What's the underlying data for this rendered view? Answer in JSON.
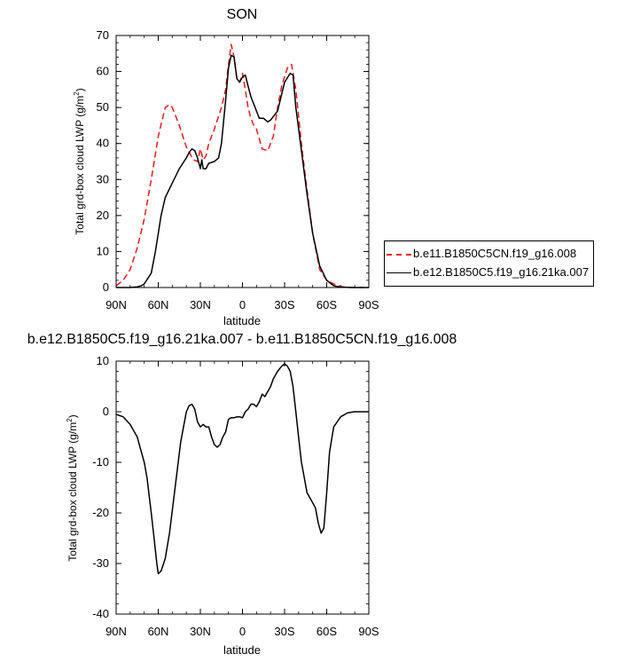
{
  "chart_data": [
    {
      "type": "line",
      "title": "SON",
      "xlabel": "latitude",
      "ylabel": "Total grd-box cloud LWP (g/m",
      "ylabel_sup": "2",
      "ylabel_end": ")",
      "xlim": [
        90,
        -90
      ],
      "ylim": [
        0,
        70
      ],
      "xticks": [
        90,
        60,
        30,
        0,
        -30,
        -60,
        -90
      ],
      "xtick_labels": [
        "90N",
        "60N",
        "30N",
        "0",
        "30S",
        "60S",
        "90S"
      ],
      "yticks": [
        0,
        10,
        20,
        30,
        40,
        50,
        60,
        70
      ],
      "ytick_labels": [
        "0",
        "10",
        "20",
        "30",
        "40",
        "50",
        "60",
        "70"
      ],
      "grid": false,
      "legend_position": "right",
      "series": [
        {
          "name": "b.e11.B1850C5CN.f19_g16.008",
          "color": "#e41a1c",
          "dash": "dashed",
          "x": [
            90,
            85,
            80,
            75,
            70,
            65,
            60,
            55,
            52,
            50,
            45,
            40,
            35,
            32,
            30,
            28,
            26,
            24,
            20,
            15,
            12,
            10,
            8,
            6,
            4,
            2,
            0,
            -2,
            -4,
            -6,
            -8,
            -10,
            -14,
            -18,
            -22,
            -25,
            -28,
            -32,
            -35,
            -38,
            -42,
            -45,
            -50,
            -55,
            -60,
            -65,
            -70,
            -75,
            -80,
            -90
          ],
          "y": [
            0.5,
            2,
            5,
            11,
            19,
            30,
            42,
            50,
            50.8,
            50,
            45,
            39,
            35.5,
            35,
            38.5,
            35.5,
            36.5,
            40,
            44,
            50,
            55,
            62,
            67.5,
            64,
            58,
            57,
            59.5,
            55,
            50,
            47,
            45,
            44,
            38.5,
            38,
            42,
            50,
            56,
            61,
            62,
            55,
            40,
            30,
            15,
            5,
            2,
            1,
            0.3,
            0,
            0,
            0
          ]
        },
        {
          "name": "b.e12.B1850C5.f19_g16.21ka.007",
          "color": "#000000",
          "dash": "solid",
          "x": [
            90,
            80,
            75,
            72,
            70,
            65,
            62,
            60,
            58,
            55,
            50,
            45,
            40,
            38,
            36,
            34,
            32,
            30,
            29,
            28,
            26,
            24,
            20,
            17,
            15,
            12,
            10,
            8,
            6,
            4,
            2,
            0,
            -2,
            -4,
            -6,
            -8,
            -10,
            -12,
            -15,
            -18,
            -20,
            -25,
            -30,
            -34,
            -36,
            -38,
            -42,
            -46,
            -50,
            -55,
            -60,
            -65,
            -70,
            -80,
            -90
          ],
          "y": [
            0,
            0,
            0.2,
            0.5,
            1,
            4,
            10,
            15,
            20,
            25,
            29,
            33,
            36,
            37.5,
            38.5,
            38,
            36,
            33,
            35.5,
            33,
            33,
            34.5,
            35,
            36,
            40,
            52,
            61,
            64.5,
            64,
            58,
            57,
            58.5,
            59,
            56,
            53,
            51,
            49,
            47,
            47,
            46,
            46.5,
            49,
            57,
            59.5,
            59,
            50,
            38,
            26,
            15,
            6,
            2,
            0.5,
            0.1,
            0,
            0
          ]
        }
      ]
    },
    {
      "type": "line",
      "title": "b.e12.B1850C5.f19_g16.21ka.007 - b.e11.B1850C5CN.f19_g16.008",
      "xlabel": "latitude",
      "ylabel": "Total grd-box cloud LWP (g/m",
      "ylabel_sup": "2",
      "ylabel_end": ")",
      "xlim": [
        90,
        -90
      ],
      "ylim": [
        -40,
        10
      ],
      "xticks": [
        90,
        60,
        30,
        0,
        -30,
        -60,
        -90
      ],
      "xtick_labels": [
        "90N",
        "60N",
        "30N",
        "0",
        "30S",
        "60S",
        "90S"
      ],
      "yticks": [
        -40,
        -30,
        -20,
        -10,
        0,
        10
      ],
      "ytick_labels": [
        "-40",
        "-30",
        "-20",
        "-10",
        "0",
        "10"
      ],
      "grid": false,
      "series": [
        {
          "color": "#000000",
          "dash": "solid",
          "x": [
            90,
            85,
            80,
            75,
            72,
            70,
            68,
            65,
            63,
            61,
            60,
            58,
            55,
            52,
            48,
            44,
            40,
            38,
            36,
            34,
            32,
            30,
            28,
            26,
            24,
            22,
            20,
            18,
            16,
            14,
            12,
            10,
            8,
            6,
            4,
            2,
            0,
            -2,
            -4,
            -6,
            -8,
            -10,
            -12,
            -14,
            -16,
            -18,
            -20,
            -22,
            -25,
            -28,
            -30,
            -32,
            -34,
            -36,
            -38,
            -40,
            -42,
            -44,
            -46,
            -48,
            -50,
            -52,
            -54,
            -56,
            -58,
            -60,
            -62,
            -65,
            -70,
            -75,
            -80,
            -90
          ],
          "y": [
            -0.5,
            -1,
            -2.5,
            -5,
            -8,
            -10,
            -13,
            -20,
            -25,
            -30,
            -32,
            -31.5,
            -29,
            -24,
            -15,
            -6,
            0,
            1.2,
            1.5,
            0.5,
            -2,
            -3,
            -2.5,
            -3,
            -3,
            -5,
            -6.5,
            -7,
            -6.5,
            -5,
            -4,
            -1.5,
            -1.2,
            -1.2,
            -1,
            -1,
            -1.2,
            0,
            0.5,
            1.5,
            1.5,
            1,
            2,
            3.5,
            3,
            4,
            5,
            6.5,
            8,
            9,
            9.5,
            9,
            8,
            5,
            0,
            -5,
            -10,
            -13,
            -16,
            -17,
            -18,
            -19,
            -22,
            -24,
            -23,
            -16,
            -8,
            -3,
            -1,
            -0.2,
            0,
            0
          ]
        }
      ]
    }
  ]
}
